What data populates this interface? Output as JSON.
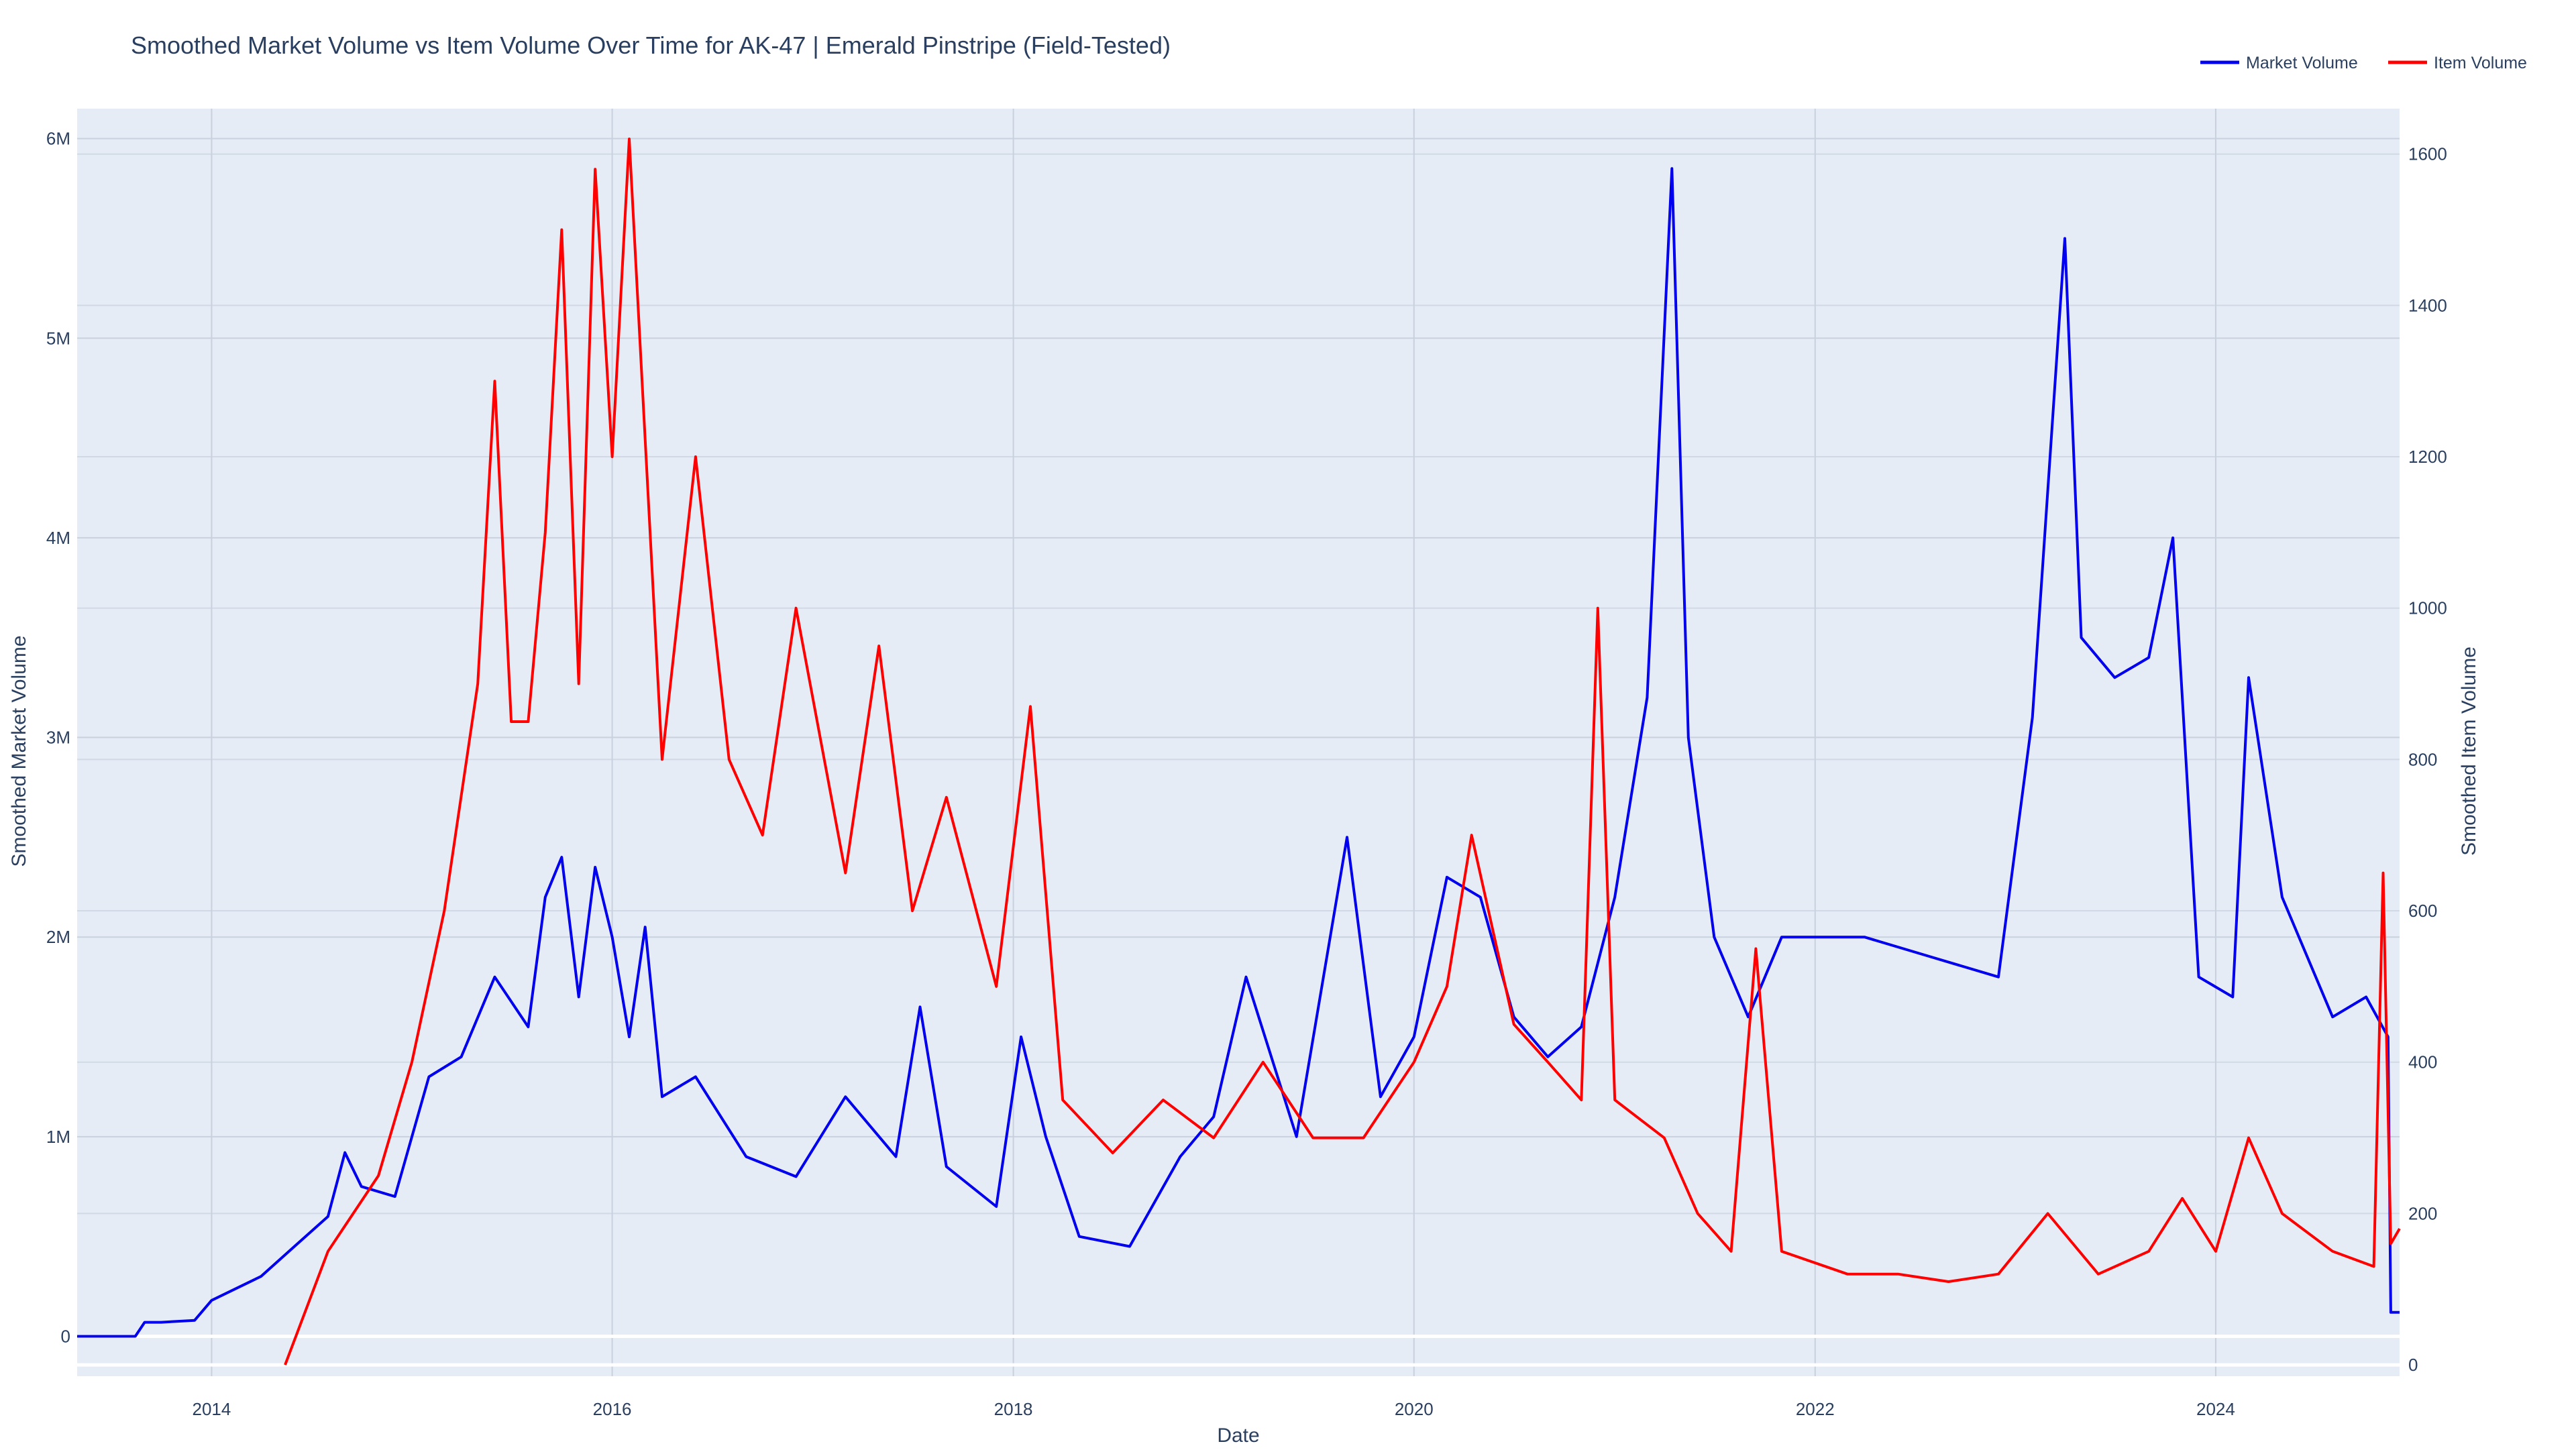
{
  "chart_data": {
    "type": "line",
    "title": "Smoothed Market Volume vs Item Volume Over Time for AK-47 | Emerald Pinstripe (Field-Tested)",
    "xlabel": "Date",
    "ylabel_left": "Smoothed Market Volume",
    "ylabel_right": "Smoothed Item Volume",
    "x_range": [
      "2013-05-01",
      "2024-12-01"
    ],
    "y_left_range": [
      -200000,
      6150000
    ],
    "y_right_range": [
      -15,
      1660
    ],
    "x_ticks": [
      "2014",
      "2016",
      "2018",
      "2020",
      "2022",
      "2024"
    ],
    "y_left_ticks": [
      {
        "value": 0,
        "label": "0"
      },
      {
        "value": 1000000,
        "label": "1M"
      },
      {
        "value": 2000000,
        "label": "2M"
      },
      {
        "value": 3000000,
        "label": "3M"
      },
      {
        "value": 4000000,
        "label": "4M"
      },
      {
        "value": 5000000,
        "label": "5M"
      },
      {
        "value": 6000000,
        "label": "6M"
      }
    ],
    "y_right_ticks": [
      0,
      200,
      400,
      600,
      800,
      1000,
      1200,
      1400,
      1600
    ],
    "grid": true,
    "legend_position": "top-right",
    "colors": {
      "plot_background": "#e5ecf6",
      "grid": "#c9d1df",
      "text": "#2a3f5f",
      "market_volume": "#0000ee",
      "item_volume": "#ff0000"
    },
    "series": [
      {
        "name": "Market Volume",
        "axis": "left",
        "color": "#0000ee",
        "points": [
          [
            "2013-05-01",
            0
          ],
          [
            "2013-08-15",
            0
          ],
          [
            "2013-09-01",
            70000
          ],
          [
            "2013-10-01",
            70000
          ],
          [
            "2013-12-01",
            80000
          ],
          [
            "2014-01-01",
            180000
          ],
          [
            "2014-04-01",
            300000
          ],
          [
            "2014-06-01",
            450000
          ],
          [
            "2014-08-01",
            600000
          ],
          [
            "2014-09-01",
            920000
          ],
          [
            "2014-10-01",
            750000
          ],
          [
            "2014-12-01",
            700000
          ],
          [
            "2015-02-01",
            1300000
          ],
          [
            "2015-04-01",
            1400000
          ],
          [
            "2015-06-01",
            1800000
          ],
          [
            "2015-08-01",
            1550000
          ],
          [
            "2015-09-01",
            2200000
          ],
          [
            "2015-10-01",
            2400000
          ],
          [
            "2015-11-01",
            1700000
          ],
          [
            "2015-12-01",
            2350000
          ],
          [
            "2016-01-01",
            2000000
          ],
          [
            "2016-02-01",
            1500000
          ],
          [
            "2016-03-01",
            2050000
          ],
          [
            "2016-04-01",
            1200000
          ],
          [
            "2016-06-01",
            1300000
          ],
          [
            "2016-09-01",
            900000
          ],
          [
            "2016-12-01",
            800000
          ],
          [
            "2017-03-01",
            1200000
          ],
          [
            "2017-06-01",
            900000
          ],
          [
            "2017-07-15",
            1650000
          ],
          [
            "2017-09-01",
            850000
          ],
          [
            "2017-12-01",
            650000
          ],
          [
            "2018-01-15",
            1500000
          ],
          [
            "2018-03-01",
            1000000
          ],
          [
            "2018-05-01",
            500000
          ],
          [
            "2018-08-01",
            450000
          ],
          [
            "2018-11-01",
            900000
          ],
          [
            "2019-01-01",
            1100000
          ],
          [
            "2019-03-01",
            1800000
          ],
          [
            "2019-06-01",
            1000000
          ],
          [
            "2019-09-01",
            2500000
          ],
          [
            "2019-11-01",
            1200000
          ],
          [
            "2020-01-01",
            1500000
          ],
          [
            "2020-03-01",
            2300000
          ],
          [
            "2020-05-01",
            2200000
          ],
          [
            "2020-07-01",
            1600000
          ],
          [
            "2020-09-01",
            1400000
          ],
          [
            "2020-11-01",
            1550000
          ],
          [
            "2021-01-01",
            2200000
          ],
          [
            "2021-03-01",
            3200000
          ],
          [
            "2021-04-15",
            5850000
          ],
          [
            "2021-05-15",
            3000000
          ],
          [
            "2021-07-01",
            2000000
          ],
          [
            "2021-09-01",
            1600000
          ],
          [
            "2021-11-01",
            2000000
          ],
          [
            "2022-01-01",
            2000000
          ],
          [
            "2022-04-01",
            2000000
          ],
          [
            "2022-08-01",
            1900000
          ],
          [
            "2022-12-01",
            1800000
          ],
          [
            "2023-02-01",
            3100000
          ],
          [
            "2023-04-01",
            5500000
          ],
          [
            "2023-05-01",
            3500000
          ],
          [
            "2023-07-01",
            3300000
          ],
          [
            "2023-09-01",
            3400000
          ],
          [
            "2023-10-15",
            4000000
          ],
          [
            "2023-12-01",
            1800000
          ],
          [
            "2024-02-01",
            1700000
          ],
          [
            "2024-03-01",
            3300000
          ],
          [
            "2024-05-01",
            2200000
          ],
          [
            "2024-08-01",
            1600000
          ],
          [
            "2024-10-01",
            1700000
          ],
          [
            "2024-11-10",
            1500000
          ],
          [
            "2024-11-15",
            120000
          ],
          [
            "2024-12-01",
            120000
          ]
        ]
      },
      {
        "name": "Item Volume",
        "axis": "right",
        "color": "#ff0000",
        "points": [
          [
            "2014-05-15",
            0
          ],
          [
            "2014-08-01",
            150
          ],
          [
            "2014-11-01",
            250
          ],
          [
            "2015-01-01",
            400
          ],
          [
            "2015-03-01",
            600
          ],
          [
            "2015-05-01",
            900
          ],
          [
            "2015-06-01",
            1300
          ],
          [
            "2015-07-01",
            850
          ],
          [
            "2015-08-01",
            850
          ],
          [
            "2015-09-01",
            1100
          ],
          [
            "2015-10-01",
            1500
          ],
          [
            "2015-11-01",
            900
          ],
          [
            "2015-12-01",
            1580
          ],
          [
            "2016-01-01",
            1200
          ],
          [
            "2016-02-01",
            1620
          ],
          [
            "2016-04-01",
            800
          ],
          [
            "2016-06-01",
            1200
          ],
          [
            "2016-08-01",
            800
          ],
          [
            "2016-10-01",
            700
          ],
          [
            "2016-12-01",
            1000
          ],
          [
            "2017-03-01",
            650
          ],
          [
            "2017-05-01",
            950
          ],
          [
            "2017-07-01",
            600
          ],
          [
            "2017-09-01",
            750
          ],
          [
            "2017-12-01",
            500
          ],
          [
            "2018-02-01",
            870
          ],
          [
            "2018-04-01",
            350
          ],
          [
            "2018-07-01",
            280
          ],
          [
            "2018-10-01",
            350
          ],
          [
            "2019-01-01",
            300
          ],
          [
            "2019-04-01",
            400
          ],
          [
            "2019-07-01",
            300
          ],
          [
            "2019-10-01",
            300
          ],
          [
            "2020-01-01",
            400
          ],
          [
            "2020-03-01",
            500
          ],
          [
            "2020-04-15",
            700
          ],
          [
            "2020-07-01",
            450
          ],
          [
            "2020-09-01",
            400
          ],
          [
            "2020-11-01",
            350
          ],
          [
            "2020-12-01",
            1000
          ],
          [
            "2021-01-01",
            350
          ],
          [
            "2021-04-01",
            300
          ],
          [
            "2021-06-01",
            200
          ],
          [
            "2021-08-01",
            150
          ],
          [
            "2021-09-15",
            550
          ],
          [
            "2021-11-01",
            150
          ],
          [
            "2022-03-01",
            120
          ],
          [
            "2022-06-01",
            120
          ],
          [
            "2022-09-01",
            110
          ],
          [
            "2022-12-01",
            120
          ],
          [
            "2023-03-01",
            200
          ],
          [
            "2023-06-01",
            120
          ],
          [
            "2023-09-01",
            150
          ],
          [
            "2023-11-01",
            220
          ],
          [
            "2024-01-01",
            150
          ],
          [
            "2024-03-01",
            300
          ],
          [
            "2024-05-01",
            200
          ],
          [
            "2024-08-01",
            150
          ],
          [
            "2024-10-15",
            130
          ],
          [
            "2024-11-01",
            650
          ],
          [
            "2024-11-15",
            160
          ],
          [
            "2024-12-01",
            180
          ]
        ]
      }
    ]
  }
}
